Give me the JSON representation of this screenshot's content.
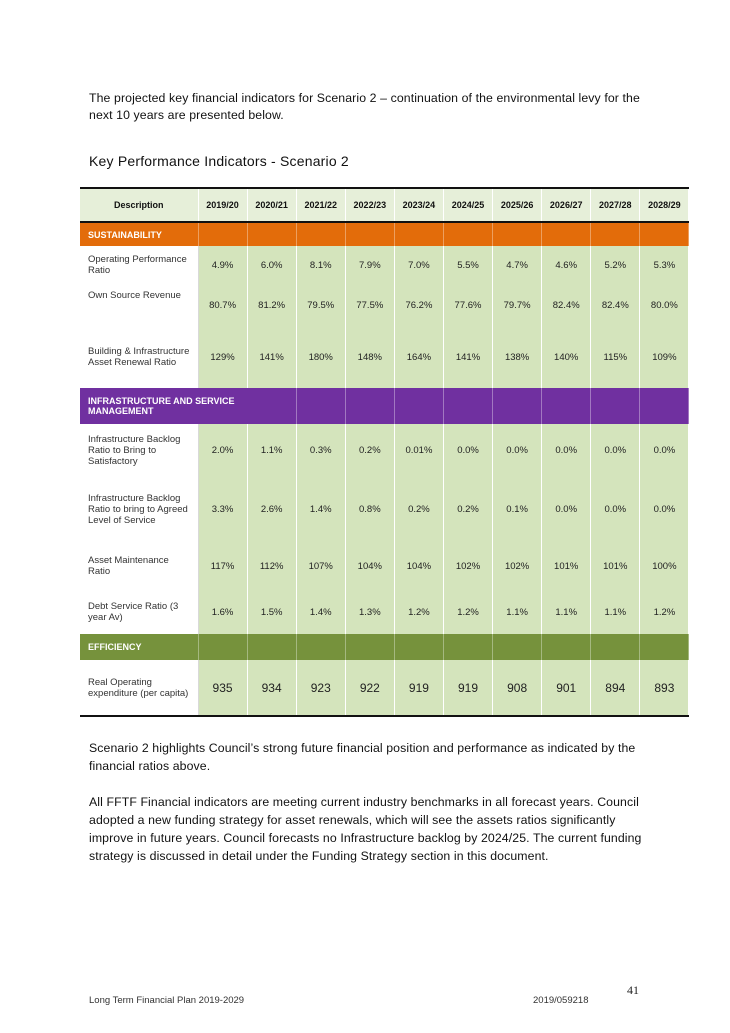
{
  "intro": "The projected key financial indicators for Scenario 2 – continuation of the environmental levy for the next 10 years are presented below.",
  "heading": "Key Performance Indicators - Scenario 2",
  "table": {
    "description_header": "Description",
    "years": [
      "2019/20",
      "2020/21",
      "2021/22",
      "2022/23",
      "2023/24",
      "2024/25",
      "2025/26",
      "2026/27",
      "2027/28",
      "2028/29"
    ],
    "sections": [
      {
        "title": "SUSTAINABILITY",
        "color": "#e36c0a",
        "rows": [
          {
            "label": "Operating Performance Ratio",
            "values": [
              "4.9%",
              "6.0%",
              "8.1%",
              "7.9%",
              "7.0%",
              "5.5%",
              "4.7%",
              "4.6%",
              "5.2%",
              "5.3%"
            ]
          },
          {
            "label": "Own Source Revenue",
            "values": [
              "80.7%",
              "81.2%",
              "79.5%",
              "77.5%",
              "76.2%",
              "77.6%",
              "79.7%",
              "82.4%",
              "82.4%",
              "80.0%"
            ]
          },
          {
            "label": "Building & Infrastructure Asset Renewal Ratio",
            "values": [
              "129%",
              "141%",
              "180%",
              "148%",
              "164%",
              "141%",
              "138%",
              "140%",
              "115%",
              "109%"
            ]
          }
        ]
      },
      {
        "title": "INFRASTRUCTURE AND SERVICE MANAGEMENT",
        "color": "#7030a0",
        "rows": [
          {
            "label": "Infrastructure Backlog Ratio to Bring to Satisfactory",
            "values": [
              "2.0%",
              "1.1%",
              "0.3%",
              "0.2%",
              "0.01%",
              "0.0%",
              "0.0%",
              "0.0%",
              "0.0%",
              "0.0%"
            ]
          },
          {
            "label": "Infrastructure Backlog Ratio to bring to Agreed Level of Service",
            "values": [
              "3.3%",
              "2.6%",
              "1.4%",
              "0.8%",
              "0.2%",
              "0.2%",
              "0.1%",
              "0.0%",
              "0.0%",
              "0.0%"
            ]
          },
          {
            "label": "Asset Maintenance Ratio",
            "values": [
              "117%",
              "112%",
              "107%",
              "104%",
              "104%",
              "102%",
              "102%",
              "101%",
              "101%",
              "100%"
            ]
          },
          {
            "label": "Debt Service Ratio (3 year Av)",
            "values": [
              "1.6%",
              "1.5%",
              "1.4%",
              "1.3%",
              "1.2%",
              "1.2%",
              "1.1%",
              "1.1%",
              "1.1%",
              "1.2%"
            ]
          }
        ]
      },
      {
        "title": "EFFICIENCY",
        "color": "#76923c",
        "rows": [
          {
            "label": "Real Operating expenditure (per capita)",
            "values": [
              "935",
              "934",
              "923",
              "922",
              "919",
              "919",
              "908",
              "901",
              "894",
              "893"
            ]
          }
        ]
      }
    ]
  },
  "para1": "Scenario 2 highlights Council’s strong future financial position and performance as indicated by the financial ratios above.",
  "para2": "All FFTF Financial indicators are meeting current industry benchmarks in all forecast years. Council adopted a new funding strategy for asset renewals, which will see the assets ratios significantly improve in future years. Council forecasts no Infrastructure backlog by 2024/25. The current funding strategy is discussed in detail under the Funding Strategy section in this document.",
  "page_number": "41",
  "footer": {
    "left": "Long Term Financial Plan 2019-2029",
    "right": "2019/059218"
  }
}
